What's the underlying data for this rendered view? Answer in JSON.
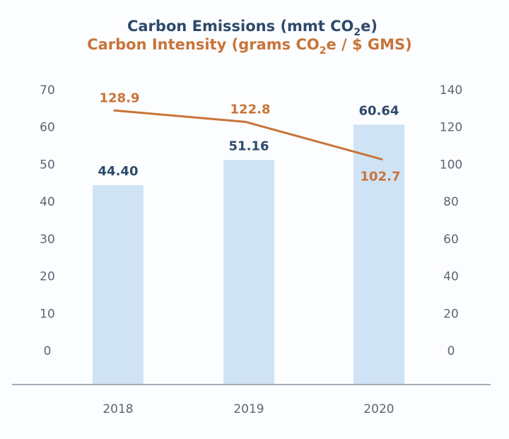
{
  "chart_data": {
    "type": "bar",
    "title_line1": {
      "pre": "Carbon Emissions (mmt CO",
      "sub": "2",
      "post": "e)"
    },
    "title_line2": {
      "pre": "Carbon Intensity (grams CO",
      "sub": "2",
      "post": "e / $ GMS)"
    },
    "categories": [
      "2018",
      "2019",
      "2020"
    ],
    "series": [
      {
        "name": "Carbon Emissions (mmt CO2e)",
        "type": "bar",
        "axis": "left",
        "values": [
          44.4,
          51.16,
          60.64
        ],
        "labels": [
          "44.40",
          "51.16",
          "60.64"
        ],
        "color": "#cfe3f5",
        "label_color": "#2d4a6b"
      },
      {
        "name": "Carbon Intensity (grams CO2e / $ GMS)",
        "type": "line",
        "axis": "right",
        "values": [
          128.9,
          122.8,
          102.7
        ],
        "labels": [
          "128.9",
          "122.8",
          "102.7"
        ],
        "color": "#c8743a",
        "label_color": "#c8743a"
      }
    ],
    "y_left": {
      "ylim": [
        0,
        70
      ],
      "ticks": [
        "0",
        "10",
        "20",
        "30",
        "40",
        "50",
        "60",
        "70"
      ]
    },
    "y_right": {
      "ylim": [
        0,
        140
      ],
      "ticks": [
        "0",
        "20",
        "40",
        "60",
        "80",
        "100",
        "120",
        "140"
      ]
    },
    "xlabel": "",
    "ylabel": "",
    "grid": false,
    "legend": "none"
  }
}
